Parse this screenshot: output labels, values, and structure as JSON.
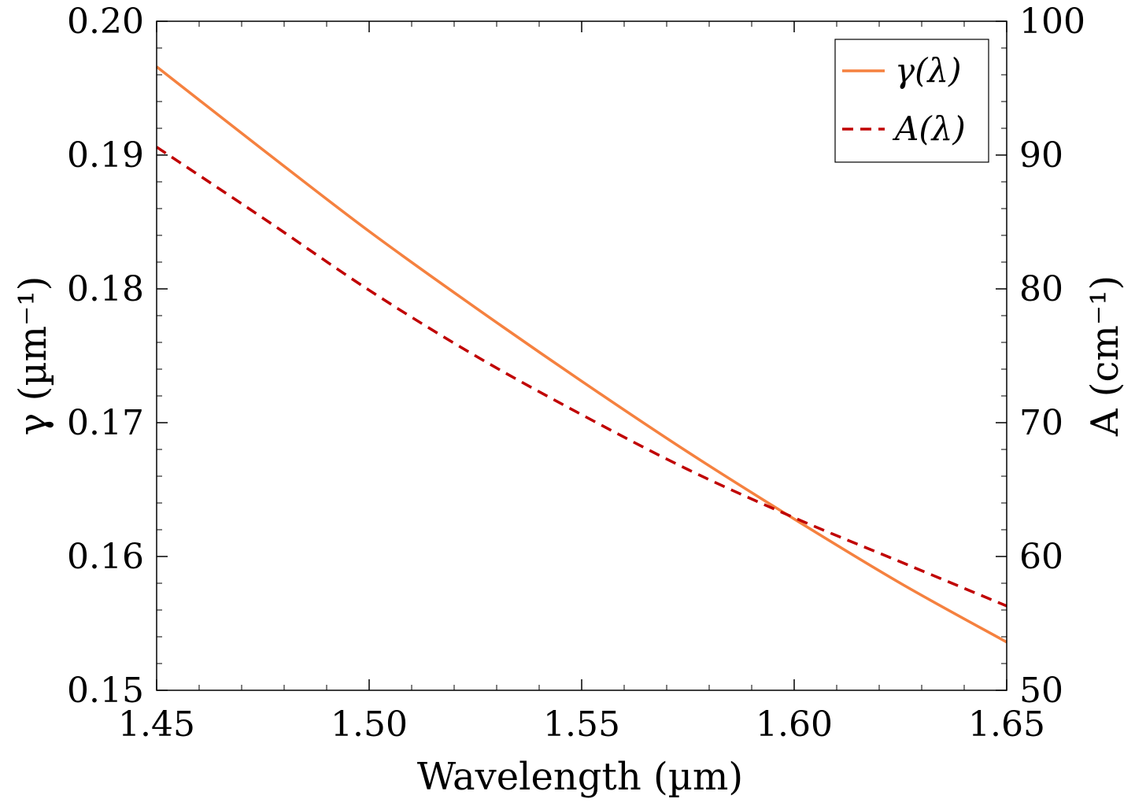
{
  "chart_data": {
    "type": "line",
    "xlabel": "Wavelength (µm)",
    "ylabel_left": "γ (µm⁻¹)",
    "ylabel_right": "A (cm⁻¹)",
    "xlim": [
      1.45,
      1.65
    ],
    "ylim_left": [
      0.15,
      0.2
    ],
    "ylim_right": [
      50,
      100
    ],
    "xticks": [
      "1.45",
      "1.50",
      "1.55",
      "1.60",
      "1.65"
    ],
    "yticks_left": [
      "0.15",
      "0.16",
      "0.17",
      "0.18",
      "0.19",
      "0.20"
    ],
    "yticks_right": [
      "50",
      "60",
      "70",
      "80",
      "90",
      "100"
    ],
    "grid": false,
    "legend_position": "top-right",
    "series": [
      {
        "name": "γ(λ)",
        "axis": "left",
        "style": "solid",
        "color": "#F5813F",
        "x": [
          1.45,
          1.475,
          1.5,
          1.525,
          1.55,
          1.575,
          1.6,
          1.625,
          1.65
        ],
        "values": [
          0.1966,
          0.1904,
          0.1843,
          0.1786,
          0.1731,
          0.1678,
          0.1628,
          0.158,
          0.1536
        ]
      },
      {
        "name": "A(λ)",
        "axis": "right",
        "style": "dashed",
        "color": "#C00000",
        "x": [
          1.45,
          1.475,
          1.5,
          1.525,
          1.55,
          1.575,
          1.6,
          1.625,
          1.65
        ],
        "values": [
          90.6,
          85.3,
          79.9,
          75.0,
          70.6,
          66.5,
          62.9,
          59.6,
          56.3
        ]
      }
    ]
  }
}
